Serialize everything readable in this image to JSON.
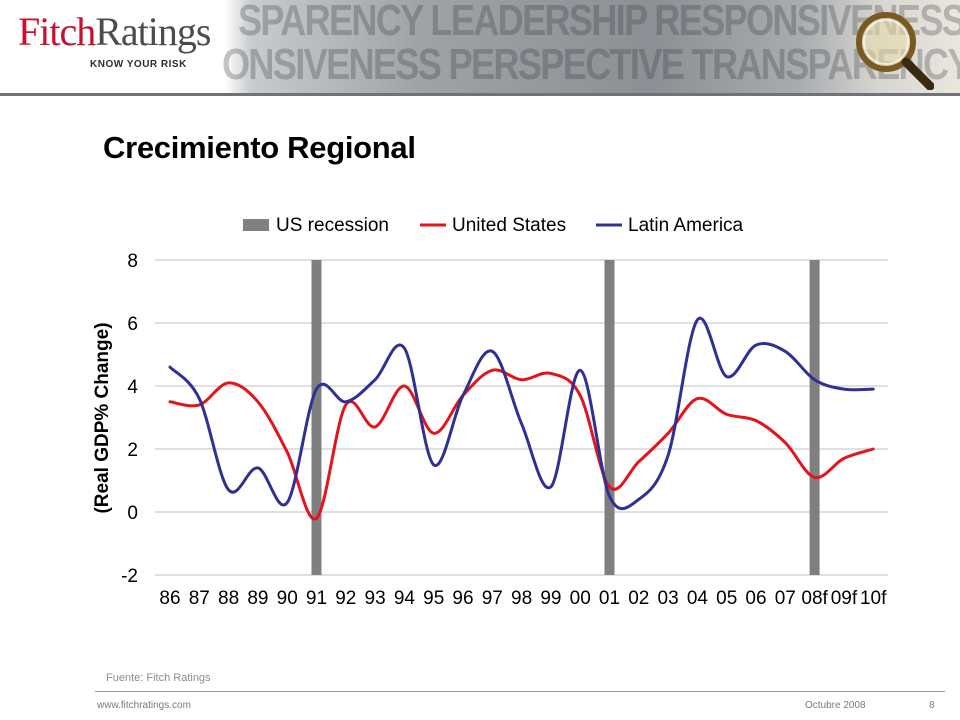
{
  "header": {
    "logo_fitch": "Fitch",
    "logo_ratings": "Ratings",
    "logo_tagline": "KNOW YOUR RISK",
    "banner_words_top": "SPARENCY LEADERSHIP RESPONSIVENESS",
    "banner_words_bottom": "ONSIVENESS PERSPECTIVE TRANSPARENCY L"
  },
  "slide": {
    "title": "Crecimiento Regional",
    "source": "Fuente: Fitch Ratings"
  },
  "footer": {
    "url": "www.fitchratings.com",
    "date": "Octubre 2008",
    "page": "8"
  },
  "chart_data": {
    "type": "line",
    "title": "",
    "xlabel": "",
    "ylabel": "(Real GDP% Change)",
    "ylim": [
      -2,
      8
    ],
    "yticks": [
      -2,
      0,
      2,
      4,
      6,
      8
    ],
    "grid": true,
    "legend_position": "top",
    "categories": [
      "86",
      "87",
      "88",
      "89",
      "90",
      "91",
      "92",
      "93",
      "94",
      "95",
      "96",
      "97",
      "98",
      "99",
      "00",
      "01",
      "02",
      "03",
      "04",
      "05",
      "06",
      "07",
      "08f",
      "09f",
      "10f"
    ],
    "recessions": {
      "name": "US recession",
      "color": "#7f7f7f",
      "at": [
        "91",
        "01",
        "08f"
      ]
    },
    "series": [
      {
        "name": "United States",
        "color": "#e3141b",
        "values": [
          3.5,
          3.4,
          4.1,
          3.5,
          1.9,
          -0.2,
          3.4,
          2.7,
          4.0,
          2.5,
          3.7,
          4.5,
          4.2,
          4.4,
          3.7,
          0.8,
          1.6,
          2.5,
          3.6,
          3.1,
          2.9,
          2.2,
          1.1,
          1.7,
          2.0
        ]
      },
      {
        "name": "Latin America",
        "color": "#2e3192",
        "values": [
          4.6,
          3.6,
          0.7,
          1.4,
          0.3,
          3.9,
          3.5,
          4.2,
          5.2,
          1.5,
          3.7,
          5.1,
          2.8,
          0.8,
          4.5,
          0.5,
          0.4,
          1.8,
          6.1,
          4.3,
          5.3,
          5.1,
          4.2,
          3.9,
          3.9
        ]
      }
    ]
  },
  "colors": {
    "brand_red": "#c8102e",
    "grid": "#c0c0c0"
  }
}
